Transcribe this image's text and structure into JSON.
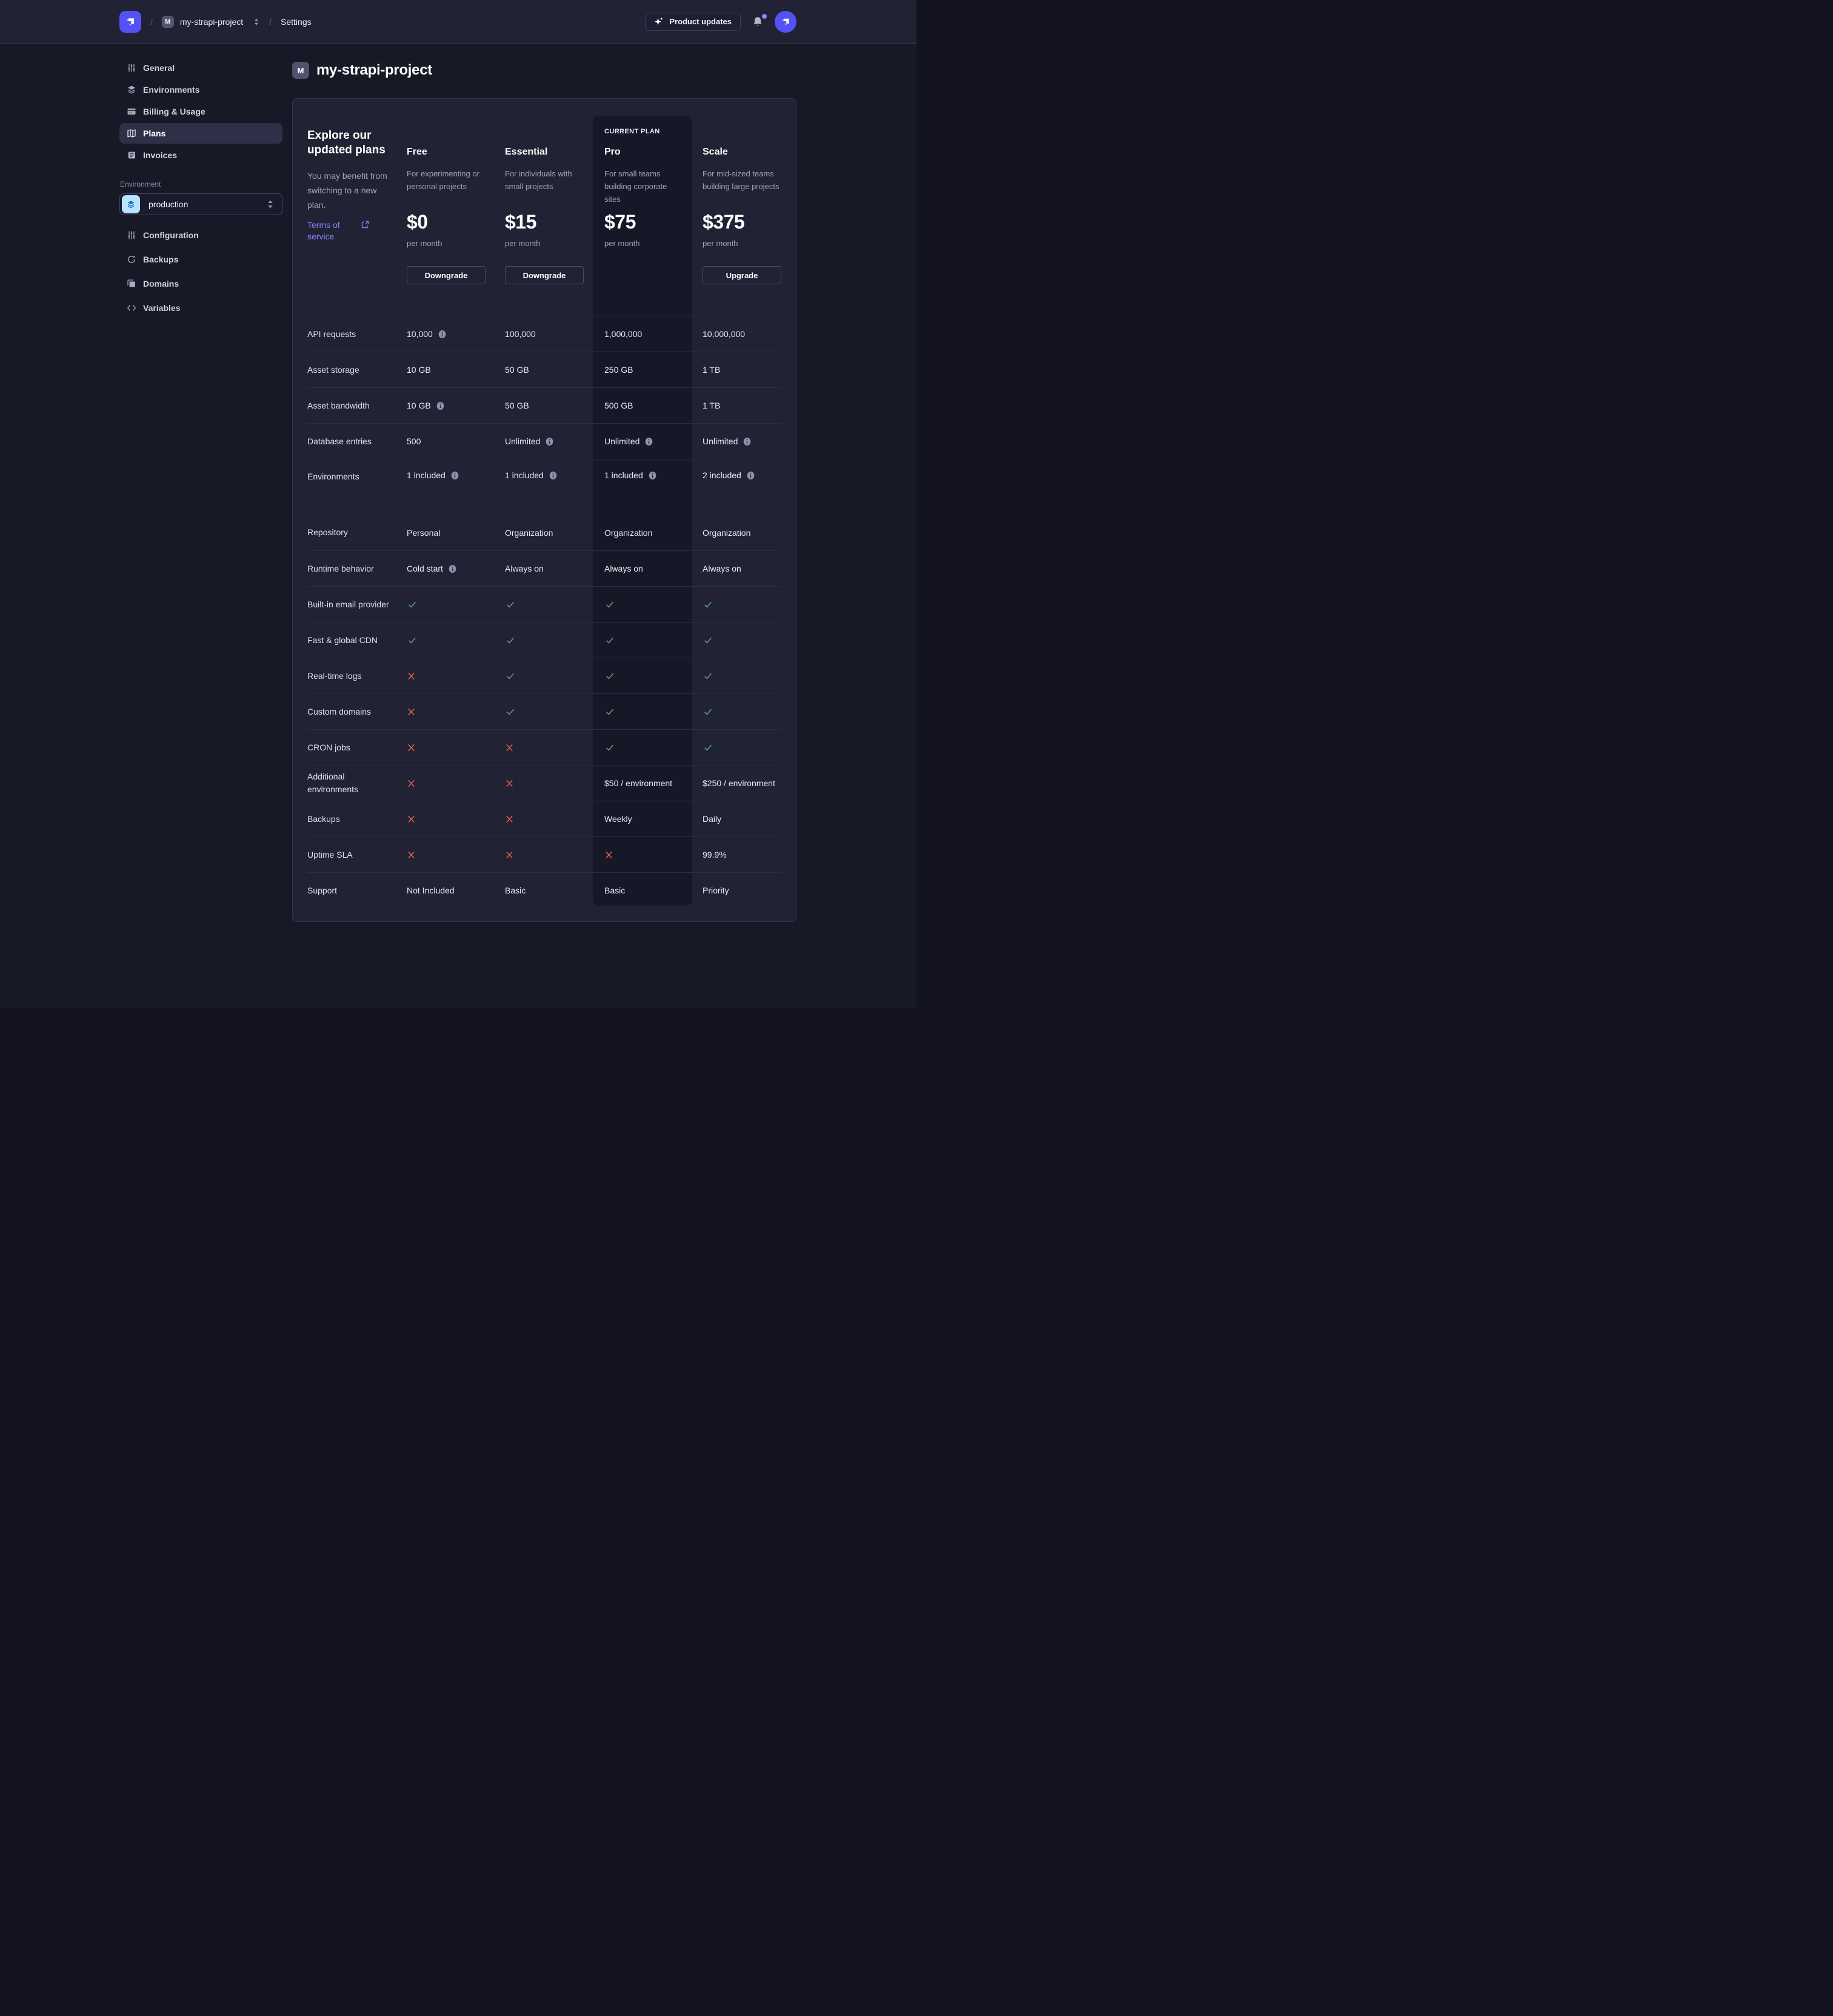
{
  "topbar": {
    "breadcrumb": {
      "separator": "/",
      "project_badge": "M",
      "project": "my-strapi-project",
      "section": "Settings"
    },
    "product_updates_label": "Product updates"
  },
  "sidebar": {
    "items": [
      {
        "label": "General",
        "icon": "sliders-icon"
      },
      {
        "label": "Environments",
        "icon": "layers-icon"
      },
      {
        "label": "Billing & Usage",
        "icon": "credit-card-icon"
      },
      {
        "label": "Plans",
        "icon": "map-icon",
        "active": true
      },
      {
        "label": "Invoices",
        "icon": "invoice-icon"
      }
    ],
    "environment": {
      "label": "Environment",
      "selected": "production"
    },
    "environment_items": [
      {
        "label": "Configuration",
        "icon": "sliders-icon"
      },
      {
        "label": "Backups",
        "icon": "refresh-icon"
      },
      {
        "label": "Domains",
        "icon": "folders-icon"
      },
      {
        "label": "Variables",
        "icon": "code-icon"
      }
    ]
  },
  "main": {
    "title_badge": "M",
    "title": "my-strapi-project",
    "card": {
      "intro": {
        "heading": "Explore our updated plans",
        "body": "You may benefit from switching to a new plan.",
        "link": "Terms of service"
      },
      "current_plan_label": "CURRENT PLAN",
      "plans": [
        {
          "name": "Free",
          "description": "For experimenting or personal projects",
          "price": "$0",
          "period": "per month",
          "action": "Downgrade",
          "current": false
        },
        {
          "name": "Essential",
          "description": "For individuals with small projects",
          "price": "$15",
          "period": "per month",
          "action": "Downgrade",
          "current": false
        },
        {
          "name": "Pro",
          "description": "For small teams building corporate sites",
          "price": "$75",
          "period": "per month",
          "action": null,
          "current": true
        },
        {
          "name": "Scale",
          "description": "For mid-sized teams building large projects",
          "price": "$375",
          "period": "per month",
          "action": "Upgrade",
          "current": false
        }
      ],
      "rows": [
        {
          "label": "API requests",
          "cells": [
            {
              "type": "text",
              "value": "10,000",
              "info": true
            },
            {
              "type": "text",
              "value": "100,000"
            },
            {
              "type": "text",
              "value": "1,000,000"
            },
            {
              "type": "text",
              "value": "10,000,000"
            }
          ]
        },
        {
          "label": "Asset storage",
          "cells": [
            {
              "type": "text",
              "value": "10 GB"
            },
            {
              "type": "text",
              "value": "50 GB"
            },
            {
              "type": "text",
              "value": "250 GB"
            },
            {
              "type": "text",
              "value": "1 TB"
            }
          ]
        },
        {
          "label": "Asset bandwidth",
          "cells": [
            {
              "type": "text",
              "value": "10 GB",
              "info": true
            },
            {
              "type": "text",
              "value": "50 GB"
            },
            {
              "type": "text",
              "value": "500 GB"
            },
            {
              "type": "text",
              "value": "1 TB"
            }
          ]
        },
        {
          "label": "Database entries",
          "cells": [
            {
              "type": "text",
              "value": "500"
            },
            {
              "type": "text",
              "value": "Unlimited",
              "info": true
            },
            {
              "type": "text",
              "value": "Unlimited",
              "info": true
            },
            {
              "type": "text",
              "value": "Unlimited",
              "info": true
            }
          ]
        },
        {
          "label": "Environments",
          "tall": true,
          "cells": [
            {
              "type": "text",
              "value": "1 included",
              "info": true
            },
            {
              "type": "text",
              "value": "1 included",
              "info": true
            },
            {
              "type": "text",
              "value": "1 included",
              "info": true
            },
            {
              "type": "text",
              "value": "2 included",
              "info": true
            }
          ]
        },
        {
          "label": "Repository",
          "section_start": true,
          "cells": [
            {
              "type": "text",
              "value": "Personal"
            },
            {
              "type": "text",
              "value": "Organization"
            },
            {
              "type": "text",
              "value": "Organization"
            },
            {
              "type": "text",
              "value": "Organization"
            }
          ]
        },
        {
          "label": "Runtime behavior",
          "cells": [
            {
              "type": "text",
              "value": "Cold start",
              "info": true
            },
            {
              "type": "text",
              "value": "Always on"
            },
            {
              "type": "text",
              "value": "Always on"
            },
            {
              "type": "text",
              "value": "Always on"
            }
          ]
        },
        {
          "label": "Built-in email provider",
          "cells": [
            {
              "type": "check"
            },
            {
              "type": "check"
            },
            {
              "type": "check"
            },
            {
              "type": "check"
            }
          ]
        },
        {
          "label": "Fast & global CDN",
          "cells": [
            {
              "type": "check"
            },
            {
              "type": "check"
            },
            {
              "type": "check"
            },
            {
              "type": "check"
            }
          ]
        },
        {
          "label": "Real-time logs",
          "cells": [
            {
              "type": "cross"
            },
            {
              "type": "check"
            },
            {
              "type": "check"
            },
            {
              "type": "check"
            }
          ]
        },
        {
          "label": "Custom domains",
          "cells": [
            {
              "type": "cross"
            },
            {
              "type": "check"
            },
            {
              "type": "check"
            },
            {
              "type": "check"
            }
          ]
        },
        {
          "label": "CRON jobs",
          "cells": [
            {
              "type": "cross"
            },
            {
              "type": "cross"
            },
            {
              "type": "check"
            },
            {
              "type": "check"
            }
          ]
        },
        {
          "label": "Additional environments",
          "cells": [
            {
              "type": "cross"
            },
            {
              "type": "cross"
            },
            {
              "type": "text",
              "value": "$50 / environment"
            },
            {
              "type": "text",
              "value": "$250 / environment"
            }
          ]
        },
        {
          "label": "Backups",
          "cells": [
            {
              "type": "cross"
            },
            {
              "type": "cross"
            },
            {
              "type": "text",
              "value": "Weekly"
            },
            {
              "type": "text",
              "value": "Daily"
            }
          ]
        },
        {
          "label": "Uptime SLA",
          "cells": [
            {
              "type": "cross"
            },
            {
              "type": "cross"
            },
            {
              "type": "cross"
            },
            {
              "type": "text",
              "value": "99.9%"
            }
          ]
        },
        {
          "label": "Support",
          "cells": [
            {
              "type": "text",
              "value": "Not Included"
            },
            {
              "type": "text",
              "value": "Basic"
            },
            {
              "type": "text",
              "value": "Basic"
            },
            {
              "type": "text",
              "value": "Priority"
            }
          ]
        }
      ]
    }
  },
  "colors": {
    "accent": "#5452f5",
    "link": "#8584ff",
    "success": "#5cb176",
    "danger": "#ee5e52",
    "card_bg": "#212234",
    "page_bg": "#181927",
    "current_plan_bg": "#171827"
  }
}
